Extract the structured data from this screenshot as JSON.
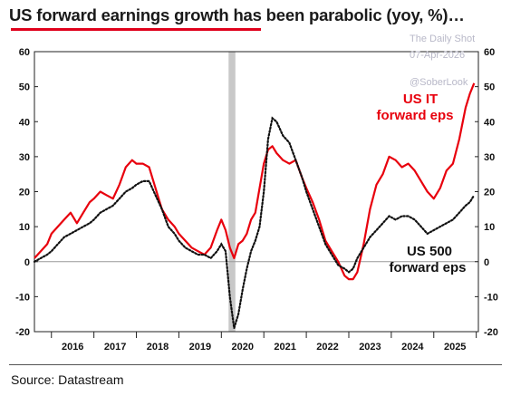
{
  "title": "US forward earnings growth has been parabolic (yoy, %)…",
  "source": "Source: Datastream",
  "watermark": {
    "line1": "The Daily Shot",
    "line2": "07-Apr-2026",
    "handle": "@SoberLook"
  },
  "colors": {
    "it_series": "#e8000d",
    "spx_series": "#111111",
    "recession_band": "#c8c8c8",
    "title_accent": "#e0001b"
  },
  "chart_data": {
    "type": "line",
    "title": "US forward earnings growth has been parabolic (yoy, %)…",
    "ylim": [
      -20,
      60
    ],
    "xlim": [
      2015.6,
      2026.05
    ],
    "yticks": [
      -20,
      -10,
      0,
      10,
      20,
      30,
      40,
      50,
      60
    ],
    "ytick_labels": [
      "-20",
      "-10",
      "0",
      "10",
      "20",
      "30",
      "40",
      "50",
      "60"
    ],
    "xtick_labels": [
      "2016",
      "2017",
      "2018",
      "2019",
      "2020",
      "2021",
      "2022",
      "2023",
      "2024",
      "2025"
    ],
    "xtick_positions": [
      2016,
      2017,
      2018,
      2019,
      2020,
      2021,
      2022,
      2023,
      2024,
      2025
    ],
    "grid": false,
    "zero_line": true,
    "shaded_period": [
      2020.17,
      2020.33
    ],
    "annotations": [
      {
        "text": "US IT",
        "series": "it"
      },
      {
        "text": "forward eps",
        "series": "it"
      },
      {
        "text": "US 500",
        "series": "spx"
      },
      {
        "text": "forward eps",
        "series": "spx"
      }
    ],
    "series": [
      {
        "key": "it",
        "style": "solid",
        "x": [
          2015.6,
          2015.75,
          2015.9,
          2016.0,
          2016.15,
          2016.3,
          2016.45,
          2016.6,
          2016.75,
          2016.9,
          2017.0,
          2017.15,
          2017.3,
          2017.45,
          2017.6,
          2017.75,
          2017.9,
          2018.0,
          2018.15,
          2018.3,
          2018.45,
          2018.6,
          2018.75,
          2018.9,
          2019.0,
          2019.15,
          2019.3,
          2019.45,
          2019.6,
          2019.75,
          2019.9,
          2020.0,
          2020.1,
          2020.2,
          2020.3,
          2020.4,
          2020.5,
          2020.6,
          2020.7,
          2020.8,
          2020.9,
          2021.0,
          2021.1,
          2021.2,
          2021.3,
          2021.45,
          2021.6,
          2021.75,
          2021.9,
          2022.0,
          2022.15,
          2022.3,
          2022.45,
          2022.6,
          2022.75,
          2022.9,
          2023.0,
          2023.1,
          2023.2,
          2023.35,
          2023.5,
          2023.65,
          2023.8,
          2023.95,
          2024.1,
          2024.25,
          2024.4,
          2024.55,
          2024.7,
          2024.85,
          2025.0,
          2025.15,
          2025.3,
          2025.45,
          2025.6,
          2025.75,
          2025.85,
          2025.95
        ],
        "y": [
          1,
          3,
          5,
          8,
          10,
          12,
          14,
          11,
          14,
          17,
          18,
          20,
          19,
          18,
          22,
          27,
          29,
          28,
          28,
          27,
          21,
          15,
          12,
          10,
          8,
          6,
          4,
          3,
          2,
          4,
          9,
          12,
          9,
          4,
          1,
          5,
          6,
          8,
          12,
          14,
          21,
          28,
          32,
          33,
          31,
          29,
          28,
          29,
          24,
          21,
          17,
          12,
          6,
          3,
          0,
          -4,
          -5,
          -5,
          -3,
          5,
          15,
          22,
          25,
          30,
          29,
          27,
          28,
          26,
          23,
          20,
          18,
          21,
          26,
          28,
          35,
          44,
          48,
          51
        ]
      },
      {
        "key": "spx",
        "style": "dotted",
        "x": [
          2015.6,
          2015.75,
          2015.9,
          2016.0,
          2016.15,
          2016.3,
          2016.45,
          2016.6,
          2016.75,
          2016.9,
          2017.0,
          2017.15,
          2017.3,
          2017.45,
          2017.6,
          2017.75,
          2017.9,
          2018.0,
          2018.15,
          2018.3,
          2018.45,
          2018.6,
          2018.75,
          2018.9,
          2019.0,
          2019.15,
          2019.3,
          2019.45,
          2019.6,
          2019.75,
          2019.9,
          2020.0,
          2020.1,
          2020.2,
          2020.3,
          2020.4,
          2020.5,
          2020.6,
          2020.7,
          2020.8,
          2020.9,
          2021.0,
          2021.1,
          2021.2,
          2021.3,
          2021.45,
          2021.6,
          2021.75,
          2021.9,
          2022.0,
          2022.15,
          2022.3,
          2022.45,
          2022.6,
          2022.75,
          2022.9,
          2023.0,
          2023.1,
          2023.2,
          2023.35,
          2023.5,
          2023.65,
          2023.8,
          2023.95,
          2024.1,
          2024.25,
          2024.4,
          2024.55,
          2024.7,
          2024.85,
          2025.0,
          2025.15,
          2025.3,
          2025.45,
          2025.6,
          2025.75,
          2025.85,
          2025.95
        ],
        "y": [
          0,
          1,
          2,
          3,
          5,
          7,
          8,
          9,
          10,
          11,
          12,
          14,
          15,
          16,
          18,
          20,
          21,
          22,
          23,
          23,
          19,
          15,
          10,
          8,
          6,
          4,
          3,
          2,
          2,
          1,
          3,
          5,
          3,
          -10,
          -19,
          -15,
          -8,
          -2,
          3,
          6,
          10,
          20,
          35,
          41,
          40,
          36,
          34,
          29,
          24,
          20,
          15,
          10,
          5,
          2,
          -1,
          -2,
          -3,
          -2,
          1,
          4,
          7,
          9,
          11,
          13,
          12,
          13,
          13,
          12,
          10,
          8,
          9,
          10,
          11,
          12,
          14,
          16,
          17,
          19
        ]
      }
    ]
  }
}
